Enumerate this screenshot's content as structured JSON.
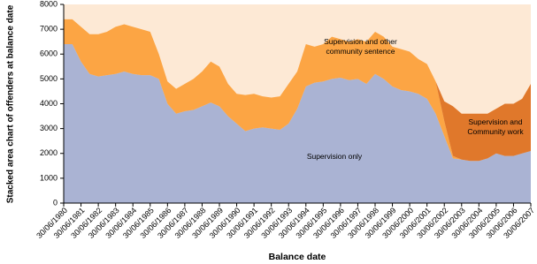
{
  "chart_data": {
    "type": "stacked-area",
    "x_label": "Balance date",
    "y_label": "Stacked area chart of offenders at balance date",
    "x": [
      1980.5,
      1981,
      1981.5,
      1982,
      1982.5,
      1983,
      1983.5,
      1984,
      1984.5,
      1985,
      1985.5,
      1986,
      1986.5,
      1987,
      1987.5,
      1988,
      1988.5,
      1989,
      1989.5,
      1990,
      1990.5,
      1991,
      1991.5,
      1992,
      1992.5,
      1993,
      1993.5,
      1994,
      1994.5,
      1995,
      1995.5,
      1996,
      1996.5,
      1997,
      1997.5,
      1998,
      1998.5,
      1999,
      1999.5,
      2000,
      2000.5,
      2001,
      2001.5,
      2002,
      2002.5,
      2003,
      2003.5,
      2004,
      2004.5,
      2005,
      2005.5,
      2006,
      2006.5,
      2007,
      2007.5
    ],
    "series": [
      {
        "name": "Supervision only",
        "color": "#aab3d3",
        "values": [
          6400,
          6400,
          5700,
          5200,
          5100,
          5150,
          5200,
          5300,
          5200,
          5150,
          5150,
          5000,
          4000,
          3600,
          3700,
          3750,
          3900,
          4050,
          3900,
          3500,
          3200,
          2900,
          3000,
          3050,
          3000,
          2950,
          3200,
          3800,
          4700,
          4850,
          4900,
          5000,
          5050,
          4950,
          5000,
          4800,
          5200,
          5000,
          4700,
          4550,
          4500,
          4400,
          4200,
          3600,
          2700,
          1800,
          1750,
          1700,
          1700,
          1800,
          2000,
          1900,
          1900,
          2000,
          2100
        ]
      },
      {
        "name": "Supervision and other community sentence",
        "color": "#fca544",
        "values": [
          1000,
          1000,
          1400,
          1600,
          1700,
          1750,
          1900,
          1900,
          1900,
          1850,
          1750,
          1000,
          900,
          1000,
          1100,
          1250,
          1400,
          1650,
          1600,
          1300,
          1200,
          1450,
          1400,
          1250,
          1250,
          1350,
          1600,
          1500,
          1700,
          1450,
          1500,
          1700,
          1550,
          1550,
          1600,
          1700,
          1700,
          1700,
          1600,
          1650,
          1600,
          1400,
          1400,
          1300,
          600,
          100,
          0,
          0,
          0,
          0,
          0,
          0,
          0,
          0,
          0
        ]
      },
      {
        "name": "Supervision and Community work",
        "color": "#e0782b",
        "values": [
          0,
          0,
          0,
          0,
          0,
          0,
          0,
          0,
          0,
          0,
          0,
          0,
          0,
          0,
          0,
          0,
          0,
          0,
          0,
          0,
          0,
          0,
          0,
          0,
          0,
          0,
          0,
          0,
          0,
          0,
          0,
          0,
          0,
          0,
          0,
          0,
          0,
          0,
          0,
          0,
          0,
          0,
          0,
          0,
          800,
          2000,
          1850,
          1900,
          1900,
          1800,
          1800,
          2100,
          2100,
          2200,
          2700
        ]
      }
    ],
    "xlim": [
      1980.5,
      2007.5
    ],
    "xticks": [
      {
        "value": 1980.5,
        "label": "30/06/1980"
      },
      {
        "value": 1981.5,
        "label": "30/06/1981"
      },
      {
        "value": 1982.5,
        "label": "30/06/1982"
      },
      {
        "value": 1983.5,
        "label": "30/06/1983"
      },
      {
        "value": 1984.5,
        "label": "30/06/1984"
      },
      {
        "value": 1985.5,
        "label": "30/06/1985"
      },
      {
        "value": 1986.5,
        "label": "30/06/1986"
      },
      {
        "value": 1987.5,
        "label": "30/06/1987"
      },
      {
        "value": 1988.5,
        "label": "30/06/1988"
      },
      {
        "value": 1989.5,
        "label": "30/06/1989"
      },
      {
        "value": 1990.5,
        "label": "30/06/1990"
      },
      {
        "value": 1991.5,
        "label": "30/06/1991"
      },
      {
        "value": 1992.5,
        "label": "30/06/1992"
      },
      {
        "value": 1993.5,
        "label": "30/06/1993"
      },
      {
        "value": 1994.5,
        "label": "30/06/1994"
      },
      {
        "value": 1995.5,
        "label": "30/06/1995"
      },
      {
        "value": 1996.5,
        "label": "30/06/1996"
      },
      {
        "value": 1997.5,
        "label": "30/06/1997"
      },
      {
        "value": 1998.5,
        "label": "30/06/1998"
      },
      {
        "value": 1999.5,
        "label": "30/06/1999"
      },
      {
        "value": 2000.5,
        "label": "30/06/2000"
      },
      {
        "value": 2001.5,
        "label": "30/06/2001"
      },
      {
        "value": 2002.5,
        "label": "30/06/2002"
      },
      {
        "value": 2003.5,
        "label": "30/06/2003"
      },
      {
        "value": 2004.5,
        "label": "30/06/2004"
      },
      {
        "value": 2005.5,
        "label": "30/06/2005"
      },
      {
        "value": 2006.5,
        "label": "30/06/2006"
      },
      {
        "value": 2007.5,
        "label": "30/06/2007"
      }
    ],
    "ylim": [
      0,
      8000
    ],
    "yticks": [
      0,
      1000,
      2000,
      3000,
      4000,
      5000,
      6000,
      7000,
      8000
    ],
    "background": "#fde9d5"
  }
}
